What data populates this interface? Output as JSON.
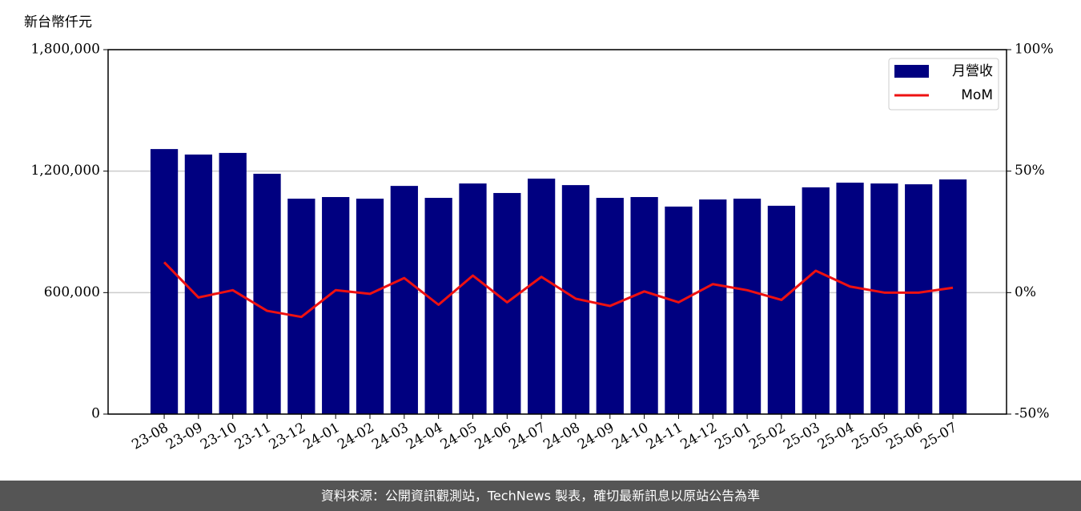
{
  "chart_data": {
    "type": "bar",
    "y_label": "新台幣仟元",
    "categories": [
      "23-08",
      "23-09",
      "23-10",
      "23-11",
      "23-12",
      "24-01",
      "24-02",
      "24-03",
      "24-04",
      "24-05",
      "24-06",
      "24-07",
      "24-08",
      "24-09",
      "24-10",
      "24-11",
      "24-12",
      "25-01",
      "25-02",
      "25-03",
      "25-04",
      "25-05",
      "25-06",
      "25-07"
    ],
    "series": [
      {
        "name": "月營收",
        "type": "bar",
        "color": "#000080",
        "values": [
          1309000,
          1282000,
          1290000,
          1187000,
          1064000,
          1072000,
          1064000,
          1127000,
          1068000,
          1139000,
          1092000,
          1163000,
          1131000,
          1068000,
          1072000,
          1025000,
          1060000,
          1064000,
          1029000,
          1120000,
          1143000,
          1139000,
          1135000,
          1159000
        ]
      },
      {
        "name": "MoM",
        "type": "line",
        "axis": "y2",
        "color": "#ee1111",
        "values": [
          12.5,
          -2,
          1,
          -7.5,
          -10,
          1,
          -0.5,
          6,
          -5,
          7,
          -4,
          6.5,
          -2.5,
          -5.5,
          0.5,
          -4,
          3.5,
          1,
          -3,
          9,
          2.5,
          0,
          0,
          2
        ]
      }
    ],
    "ylim": [
      0,
      1800000
    ],
    "yticks": [
      0,
      {
        "value": 600000,
        "label": "600,000"
      },
      {
        "value": 1200000,
        "label": "1,200,000"
      },
      {
        "value": 1800000,
        "label": "1,800,000"
      }
    ],
    "y2lim": [
      -50,
      100
    ],
    "y2ticks": [
      {
        "value": -50,
        "label": "-50%"
      },
      {
        "value": 0,
        "label": "0%"
      },
      {
        "value": 50,
        "label": "50%"
      },
      {
        "value": 100,
        "label": "100%"
      }
    ],
    "grid": true,
    "legend": "upper right"
  },
  "footer": "資料來源：公開資訊觀測站，TechNews 製表，確切最新訊息以原站公告為準"
}
